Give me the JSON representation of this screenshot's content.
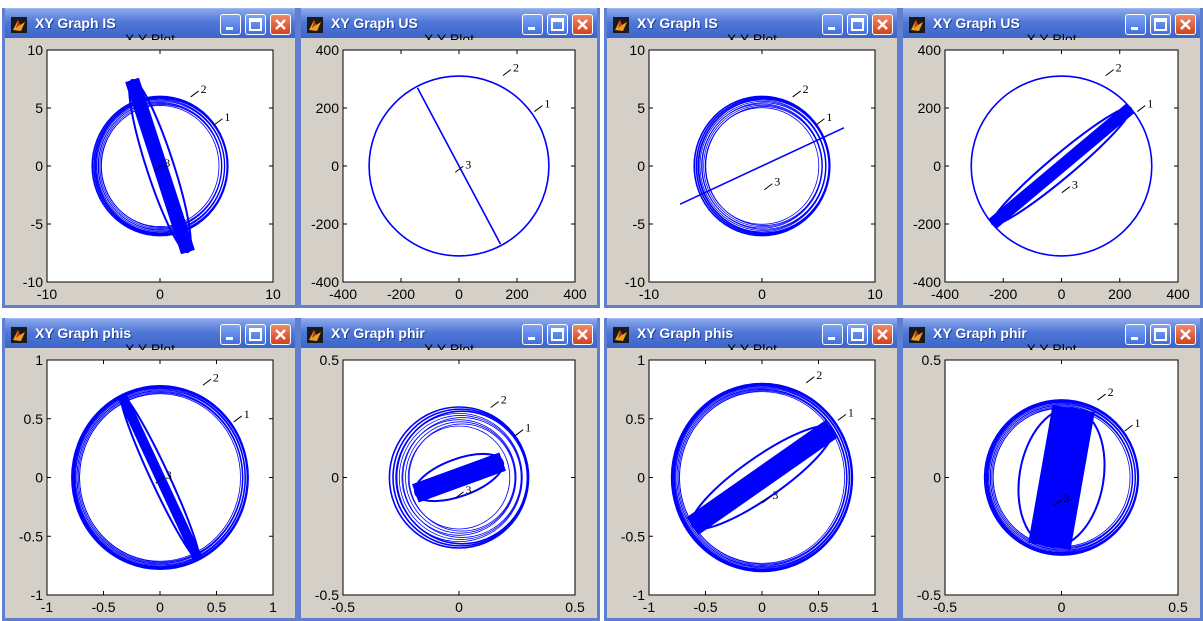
{
  "windows": [
    {
      "title": "XY Graph IS",
      "plot_title": "X Y Plot"
    },
    {
      "title": "XY Graph US",
      "plot_title": "X Y Plot"
    },
    {
      "title": "XY Graph IS",
      "plot_title": "X Y Plot"
    },
    {
      "title": "XY Graph US",
      "plot_title": "X Y Plot"
    },
    {
      "title": "XY Graph phis",
      "plot_title": "X Y Plot"
    },
    {
      "title": "XY Graph phir",
      "plot_title": "X Y Plot"
    },
    {
      "title": "XY Graph phis",
      "plot_title": "X Y Plot"
    },
    {
      "title": "XY Graph phir",
      "plot_title": "X Y Plot"
    }
  ],
  "chart_data": [
    {
      "type": "scatter",
      "title": "X Y Plot",
      "xlim": [
        -10,
        10
      ],
      "ylim": [
        -10,
        10
      ],
      "xticks": [
        "-10",
        "0",
        "10"
      ],
      "yticks": [
        "10",
        "5",
        "0",
        "-5",
        "-10"
      ],
      "curve_labels": [
        "1",
        "2",
        "3"
      ],
      "color": "#0000ff",
      "traj": {
        "circle_r": 6,
        "spread": 0.12,
        "bar_angle": -72,
        "bar_half_len": 8,
        "bar_width": 1.2
      }
    },
    {
      "type": "scatter",
      "title": "X Y Plot",
      "xlim": [
        -400,
        400
      ],
      "ylim": [
        -400,
        400
      ],
      "xticks": [
        "-400",
        "-200",
        "0",
        "200",
        "400"
      ],
      "yticks": [
        "400",
        "200",
        "0",
        "-200",
        "-400"
      ],
      "curve_labels": [
        "1",
        "2",
        "3"
      ],
      "color": "#0000ff",
      "traj": {
        "circle_r": 310,
        "spread": 0.0,
        "bar_angle": -62,
        "bar_half_len": 305,
        "bar_width": 0
      }
    },
    {
      "type": "scatter",
      "title": "X Y Plot",
      "xlim": [
        -10,
        10
      ],
      "ylim": [
        -10,
        10
      ],
      "xticks": [
        "-10",
        "0",
        "10"
      ],
      "yticks": [
        "10",
        "5",
        "0",
        "-5",
        "-10"
      ],
      "curve_labels": [
        "1",
        "2",
        "3"
      ],
      "color": "#0000ff",
      "traj": {
        "circle_r": 6,
        "spread": 0.15,
        "bar_angle": 25,
        "bar_half_len": 8,
        "bar_width": 0
      }
    },
    {
      "type": "scatter",
      "title": "X Y Plot",
      "xlim": [
        -400,
        400
      ],
      "ylim": [
        -400,
        400
      ],
      "xticks": [
        "-400",
        "-200",
        "0",
        "200",
        "400"
      ],
      "yticks": [
        "400",
        "200",
        "0",
        "-200",
        "-400"
      ],
      "curve_labels": [
        "1",
        "2",
        "3"
      ],
      "color": "#0000ff",
      "traj": {
        "circle_r": 310,
        "spread": 0.0,
        "bar_angle": 40,
        "bar_half_len": 310,
        "bar_width": 40
      }
    },
    {
      "type": "scatter",
      "title": "X Y Plot",
      "xlim": [
        -1,
        1
      ],
      "ylim": [
        -1,
        1
      ],
      "xticks": [
        "-1",
        "-0.5",
        "0",
        "0.5",
        "1"
      ],
      "yticks": [
        "1",
        "0.5",
        "0",
        "-0.5",
        "-1"
      ],
      "curve_labels": [
        "1",
        "2",
        "3"
      ],
      "color": "#0000ff",
      "traj": {
        "circle_r": 0.78,
        "spread": 0.08,
        "bar_angle": -65,
        "bar_half_len": 0.8,
        "bar_width": 0.08
      }
    },
    {
      "type": "scatter",
      "title": "X Y Plot",
      "xlim": [
        -0.5,
        0.5
      ],
      "ylim": [
        -0.5,
        0.5
      ],
      "xticks": [
        "-0.5",
        "0",
        "0.5"
      ],
      "yticks": [
        "0.5",
        "0",
        "-0.5"
      ],
      "curve_labels": [
        "1",
        "2",
        "3"
      ],
      "color": "#0000ff",
      "traj": {
        "circle_r": 0.3,
        "spread": 0.25,
        "bar_angle": 20,
        "bar_half_len": 0.2,
        "bar_width": 0.08
      }
    },
    {
      "type": "scatter",
      "title": "X Y Plot",
      "xlim": [
        -1,
        1
      ],
      "ylim": [
        -1,
        1
      ],
      "xticks": [
        "-1",
        "-0.5",
        "0",
        "0.5",
        "1"
      ],
      "yticks": [
        "1",
        "0.5",
        "0",
        "-0.5",
        "-1"
      ],
      "curve_labels": [
        "1",
        "2",
        "3"
      ],
      "color": "#0000ff",
      "traj": {
        "circle_r": 0.8,
        "spread": 0.08,
        "bar_angle": 35,
        "bar_half_len": 0.75,
        "bar_width": 0.18
      }
    },
    {
      "type": "scatter",
      "title": "X Y Plot",
      "xlim": [
        -0.5,
        0.5
      ],
      "ylim": [
        -0.5,
        0.5
      ],
      "xticks": [
        "-0.5",
        "0",
        "0.5"
      ],
      "yticks": [
        "0.5",
        "0",
        "-0.5"
      ],
      "curve_labels": [
        "1",
        "2",
        "3"
      ],
      "color": "#0000ff",
      "traj": {
        "circle_r": 0.33,
        "spread": 0.1,
        "bar_angle": 80,
        "bar_half_len": 0.3,
        "bar_width": 0.18
      }
    }
  ]
}
